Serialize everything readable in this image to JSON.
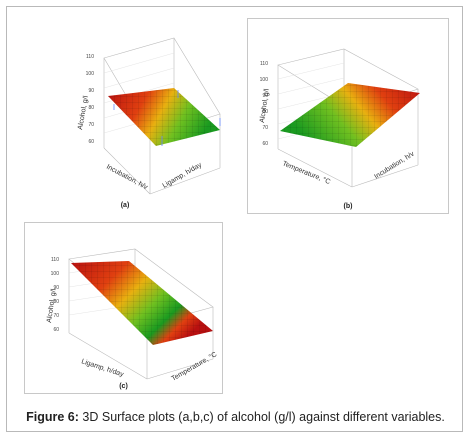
{
  "caption": {
    "label": "Figure 6:",
    "text": "3D Surface plots (a,b,c) of alcohol (g/l) against different variables."
  },
  "chart_data": [
    {
      "type": "surface",
      "panel_label": "(a)",
      "zlabel": "Alcohol, g/l",
      "xlabel": "Incubation, h/v",
      "ylabel": "Ligamp, h/day",
      "ztick_labels": [
        "110",
        "100",
        "90",
        "80",
        "70",
        "60"
      ],
      "colors": [
        "#cc1818",
        "#e8a010",
        "#2ca02c"
      ]
    },
    {
      "type": "surface",
      "panel_label": "(b)",
      "zlabel": "Alcohol, g/l",
      "xlabel": "Temperature, °C",
      "ylabel": "Incubation, h/v",
      "ztick_labels": [
        "110",
        "100",
        "90",
        "80",
        "70",
        "60"
      ],
      "colors": [
        "#2ca02c",
        "#e8a010",
        "#cc1818"
      ]
    },
    {
      "type": "surface",
      "panel_label": "(c)",
      "zlabel": "Alcohol, g/l",
      "xlabel": "Ligamp, h/day",
      "ylabel": "Temperature, °C",
      "ztick_labels": [
        "110",
        "100",
        "90",
        "80",
        "70",
        "60"
      ],
      "colors": [
        "#cc1818",
        "#e8a010",
        "#2ca02c"
      ]
    }
  ]
}
